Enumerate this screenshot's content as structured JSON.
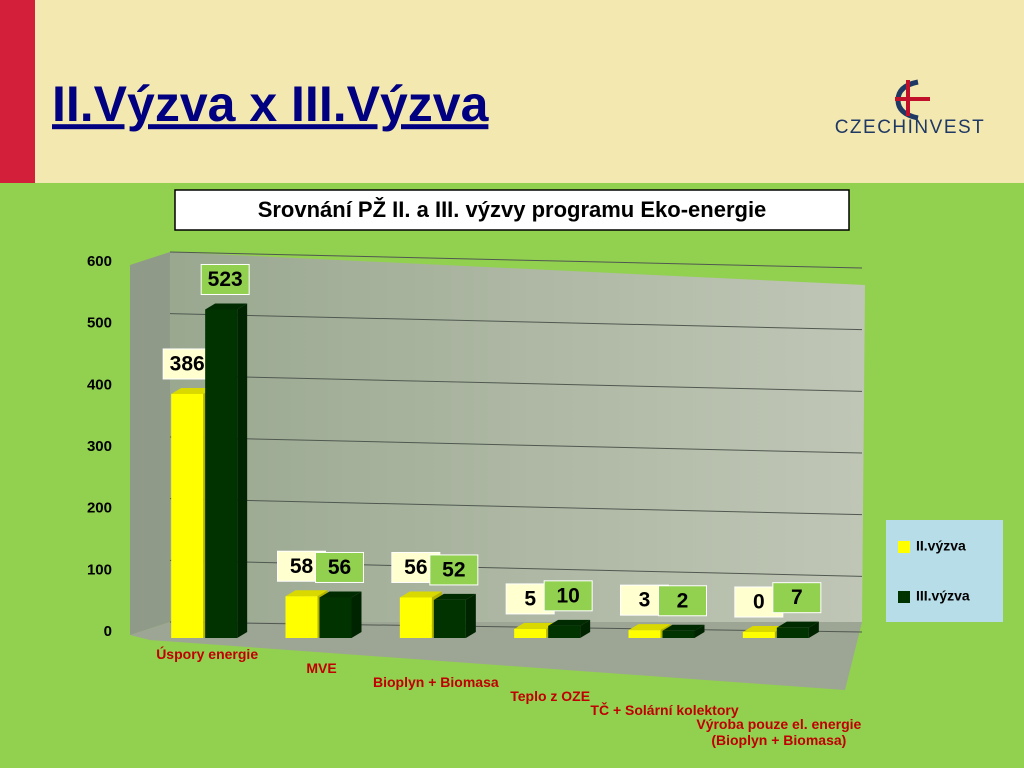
{
  "header": {
    "title": "II.Výzva x III.Výzva",
    "logo": "CZECHINVEST"
  },
  "chart_data": {
    "type": "bar3d",
    "title": "Srovnání PŽ II. a III. výzvy programu Eko-energie",
    "categories": [
      "Úspory energie",
      "MVE",
      "Bioplyn + Biomasa",
      "Teplo z OZE",
      "TČ +  Solární kolektory",
      "Výroba pouze el. energie (Bioplyn + Biomasa)"
    ],
    "series": [
      {
        "name": "II.výzva",
        "color": "#ffff00",
        "values": [
          386,
          58,
          56,
          5,
          3,
          0
        ]
      },
      {
        "name": "III.výzva",
        "color": "#003300",
        "values": [
          523,
          56,
          52,
          10,
          2,
          7
        ]
      }
    ],
    "ylim": [
      0,
      600
    ],
    "yticks": [
      0,
      100,
      200,
      300,
      400,
      500,
      600
    ],
    "grid": true,
    "legend": "right"
  }
}
